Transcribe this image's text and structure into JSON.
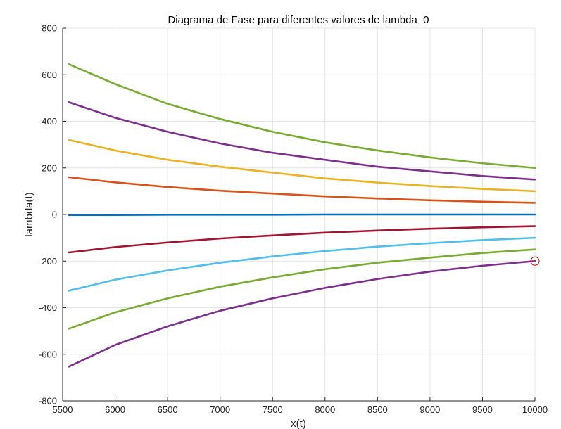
{
  "chart_data": {
    "type": "line",
    "title": "Diagrama de Fase para diferentes valores de lambda_0",
    "xlabel": "x(t)",
    "ylabel": "lambda(t)",
    "xlim": [
      5500,
      10000
    ],
    "ylim": [
      -800,
      800
    ],
    "xticks": [
      5500,
      6000,
      6500,
      7000,
      7500,
      8000,
      8500,
      9000,
      9500,
      10000
    ],
    "yticks": [
      -800,
      -600,
      -400,
      -200,
      0,
      200,
      400,
      600,
      800
    ],
    "xtick_labels": [
      "5500",
      "6000",
      "6500",
      "7000",
      "7500",
      "8000",
      "8500",
      "9000",
      "9500",
      "10000"
    ],
    "ytick_labels": [
      "-800",
      "-600",
      "-400",
      "-200",
      "0",
      "200",
      "400",
      "600",
      "800"
    ],
    "grid": true,
    "series": [
      {
        "color": "#77ac30",
        "x": [
          5560,
          6000,
          6500,
          7000,
          7500,
          8000,
          8500,
          9000,
          9500,
          10000
        ],
        "y": [
          645,
          560,
          475,
          410,
          355,
          310,
          275,
          245,
          220,
          200
        ]
      },
      {
        "color": "#7e2f8e",
        "x": [
          5560,
          6000,
          6500,
          7000,
          7500,
          8000,
          8500,
          9000,
          9500,
          10000
        ],
        "y": [
          482,
          415,
          355,
          305,
          265,
          235,
          205,
          185,
          165,
          150
        ]
      },
      {
        "color": "#edb120",
        "x": [
          5560,
          6000,
          6500,
          7000,
          7500,
          8000,
          8500,
          9000,
          9500,
          10000
        ],
        "y": [
          320,
          275,
          235,
          205,
          180,
          155,
          137,
          122,
          110,
          100
        ]
      },
      {
        "color": "#d95319",
        "x": [
          5560,
          6000,
          6500,
          7000,
          7500,
          8000,
          8500,
          9000,
          9500,
          10000
        ],
        "y": [
          160,
          138,
          118,
          102,
          90,
          78,
          69,
          61,
          55,
          50
        ]
      },
      {
        "color": "#0072bd",
        "x": [
          5560,
          6000,
          6500,
          7000,
          7500,
          8000,
          8500,
          9000,
          9500,
          10000
        ],
        "y": [
          -2,
          -2,
          -1,
          -1,
          -1,
          0,
          0,
          0,
          0,
          0
        ]
      },
      {
        "color": "#a2142f",
        "x": [
          5560,
          6000,
          6500,
          7000,
          7500,
          8000,
          8500,
          9000,
          9500,
          10000
        ],
        "y": [
          -163,
          -140,
          -120,
          -103,
          -90,
          -78,
          -69,
          -61,
          -55,
          -50
        ]
      },
      {
        "color": "#4dbeee",
        "x": [
          5560,
          6000,
          6500,
          7000,
          7500,
          8000,
          8500,
          9000,
          9500,
          10000
        ],
        "y": [
          -327,
          -280,
          -240,
          -207,
          -180,
          -157,
          -138,
          -123,
          -110,
          -100
        ]
      },
      {
        "color": "#77ac30",
        "x": [
          5560,
          6000,
          6500,
          7000,
          7500,
          8000,
          8500,
          9000,
          9500,
          10000
        ],
        "y": [
          -490,
          -420,
          -360,
          -310,
          -270,
          -235,
          -207,
          -185,
          -165,
          -150
        ]
      },
      {
        "color": "#7e2f8e",
        "x": [
          5560,
          6000,
          6500,
          7000,
          7500,
          8000,
          8500,
          9000,
          9500,
          10000
        ],
        "y": [
          -653,
          -560,
          -480,
          -413,
          -360,
          -315,
          -277,
          -245,
          -220,
          -200
        ]
      }
    ],
    "markers": [
      {
        "x": 10000,
        "y": -200,
        "shape": "open-circle",
        "color": "#e00000"
      }
    ]
  }
}
